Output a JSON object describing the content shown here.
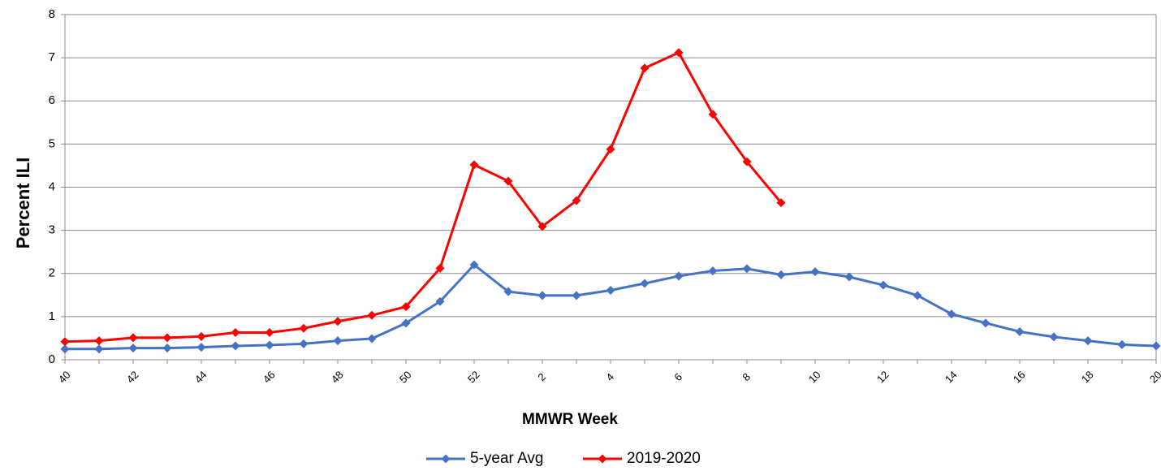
{
  "chart_data": {
    "type": "line",
    "x_label": "MMWR Week",
    "y_label": "Percent ILI",
    "categories": [
      40,
      null,
      42,
      null,
      44,
      null,
      46,
      null,
      48,
      null,
      50,
      null,
      52,
      null,
      2,
      null,
      4,
      null,
      6,
      null,
      8,
      null,
      10,
      null,
      12,
      null,
      14,
      null,
      16,
      null,
      18,
      null,
      20
    ],
    "series": [
      {
        "name": "5-year Avg",
        "color": "#4472c4",
        "values": [
          0.25,
          0.25,
          0.27,
          0.27,
          0.29,
          0.32,
          0.34,
          0.37,
          0.44,
          0.49,
          0.85,
          1.35,
          2.2,
          1.58,
          1.49,
          1.49,
          1.61,
          1.77,
          1.94,
          2.06,
          2.11,
          1.97,
          2.04,
          1.92,
          1.73,
          1.49,
          1.06,
          0.85,
          0.65,
          0.53,
          0.44,
          0.35,
          0.32
        ]
      },
      {
        "name": "2019-2020",
        "color": "#ff0000",
        "values": [
          0.42,
          0.44,
          0.51,
          0.51,
          0.54,
          0.63,
          0.63,
          0.73,
          0.89,
          1.03,
          1.23,
          2.12,
          4.52,
          4.14,
          3.09,
          3.69,
          4.88,
          6.76,
          7.12,
          5.69,
          4.59,
          3.64,
          null,
          null,
          null,
          null,
          null,
          null,
          null,
          null,
          null,
          null,
          null
        ]
      }
    ],
    "ylim": [
      0,
      8
    ],
    "yticks": [
      0,
      1,
      2,
      3,
      4,
      5,
      6,
      7,
      8
    ],
    "grid": true
  }
}
